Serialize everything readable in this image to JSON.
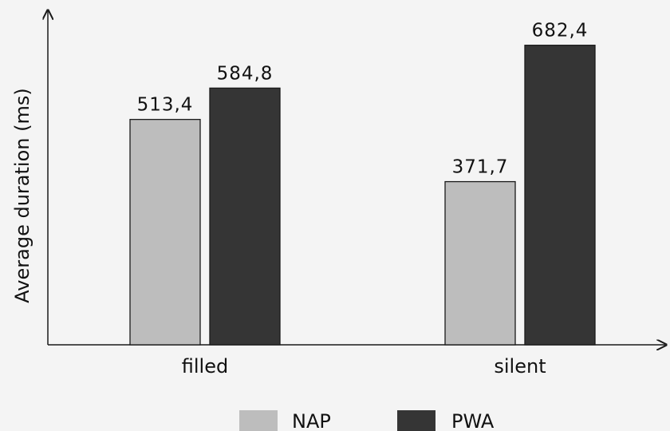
{
  "chart_data": {
    "type": "bar",
    "categories": [
      "filled",
      "silent"
    ],
    "series": [
      {
        "name": "NAP",
        "values": [
          513.4,
          371.7
        ],
        "labels": [
          "513,4",
          "371,7"
        ],
        "color": "#bdbdbd"
      },
      {
        "name": "PWA",
        "values": [
          584.8,
          682.4
        ],
        "labels": [
          "584,8",
          "682,4"
        ],
        "color": "#353535"
      }
    ],
    "ylabel": "Average duration (ms)",
    "xlabel": "",
    "ylim": [
      0,
      760
    ],
    "grid": false,
    "legend_position": "bottom"
  }
}
